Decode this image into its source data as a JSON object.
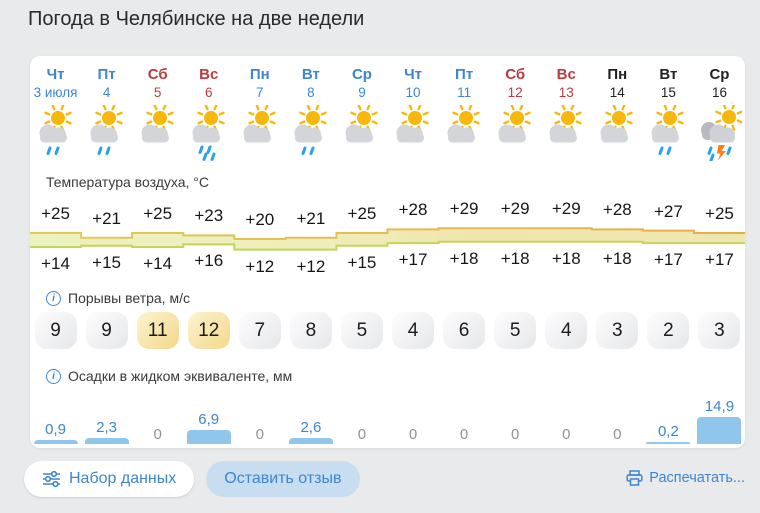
{
  "title": "Погода в Челябинске на две недели",
  "sections": {
    "temp": "Температура воздуха, °C",
    "wind": "Порывы ветра, м/с",
    "precip": "Осадки в жидком эквиваленте, мм"
  },
  "days": [
    {
      "name": "Чт",
      "date": "3 июля",
      "color": "blue",
      "icon": "sun-cloud-rain",
      "high_label": "+25",
      "low_label": "+14",
      "high": 25,
      "low": 14,
      "wind": 9,
      "precip_label": "0,9",
      "precip": 0.9
    },
    {
      "name": "Пт",
      "date": "4",
      "color": "blue",
      "icon": "sun-cloud-rain",
      "high_label": "+21",
      "low_label": "+15",
      "high": 21,
      "low": 15,
      "wind": 9,
      "precip_label": "2,3",
      "precip": 2.3
    },
    {
      "name": "Сб",
      "date": "5",
      "color": "red",
      "icon": "sun-cloud",
      "high_label": "+25",
      "low_label": "+14",
      "high": 25,
      "low": 14,
      "wind": 11,
      "precip_label": "0",
      "precip": 0
    },
    {
      "name": "Вс",
      "date": "6",
      "color": "red",
      "icon": "sun-cloud-rain-heavy",
      "high_label": "+23",
      "low_label": "+16",
      "high": 23,
      "low": 16,
      "wind": 12,
      "precip_label": "6,9",
      "precip": 6.9
    },
    {
      "name": "Пн",
      "date": "7",
      "color": "blue",
      "icon": "sun-cloud",
      "high_label": "+20",
      "low_label": "+12",
      "high": 20,
      "low": 12,
      "wind": 7,
      "precip_label": "0",
      "precip": 0
    },
    {
      "name": "Вт",
      "date": "8",
      "color": "blue",
      "icon": "sun-cloud-rain",
      "high_label": "+21",
      "low_label": "+12",
      "high": 21,
      "low": 12,
      "wind": 8,
      "precip_label": "2,6",
      "precip": 2.6
    },
    {
      "name": "Ср",
      "date": "9",
      "color": "blue",
      "icon": "sun-cloud",
      "high_label": "+25",
      "low_label": "+15",
      "high": 25,
      "low": 15,
      "wind": 5,
      "precip_label": "0",
      "precip": 0
    },
    {
      "name": "Чт",
      "date": "10",
      "color": "blue",
      "icon": "sun-cloud",
      "high_label": "+28",
      "low_label": "+17",
      "high": 28,
      "low": 17,
      "wind": 4,
      "precip_label": "0",
      "precip": 0
    },
    {
      "name": "Пт",
      "date": "11",
      "color": "blue",
      "icon": "sun-cloud",
      "high_label": "+29",
      "low_label": "+18",
      "high": 29,
      "low": 18,
      "wind": 6,
      "precip_label": "0",
      "precip": 0
    },
    {
      "name": "Сб",
      "date": "12",
      "color": "red",
      "icon": "sun-cloud",
      "high_label": "+29",
      "low_label": "+18",
      "high": 29,
      "low": 18,
      "wind": 5,
      "precip_label": "0",
      "precip": 0
    },
    {
      "name": "Вс",
      "date": "13",
      "color": "red",
      "icon": "sun-cloud",
      "high_label": "+29",
      "low_label": "+18",
      "high": 29,
      "low": 18,
      "wind": 4,
      "precip_label": "0",
      "precip": 0
    },
    {
      "name": "Пн",
      "date": "14",
      "color": "dark",
      "icon": "sun-cloud",
      "high_label": "+28",
      "low_label": "+18",
      "high": 28,
      "low": 18,
      "wind": 3,
      "precip_label": "0",
      "precip": 0
    },
    {
      "name": "Вт",
      "date": "15",
      "color": "dark",
      "icon": "sun-cloud-rain",
      "high_label": "+27",
      "low_label": "+17",
      "high": 27,
      "low": 17,
      "wind": 2,
      "precip_label": "0,2",
      "precip": 0.2
    },
    {
      "name": "Ср",
      "date": "16",
      "color": "dark",
      "icon": "storm",
      "high_label": "+25",
      "low_label": "+17",
      "high": 25,
      "low": 17,
      "wind": 3,
      "precip_label": "14,9",
      "precip": 14.9
    }
  ],
  "wind_warn_threshold": 10,
  "buttons": {
    "dataset": "Набор данных",
    "feedback": "Оставить отзыв",
    "print": "Распечатать..."
  },
  "colors": {
    "accent_blue": "#3d86d0",
    "weekend_red": "#ba3c3e",
    "weekday_dark": "#222222",
    "band_fill_cool": "#ecf1c0",
    "band_fill_warm": "#f2e4ad",
    "band_top_stroke": "#e2cb55",
    "band_bottom_stroke": "#c0d65b",
    "precip_bar": "#90c6eb",
    "wind_warn_bg": "#f4d88a",
    "zero_gray": "#8e9298",
    "page_bg": "#e9eaeb"
  }
}
